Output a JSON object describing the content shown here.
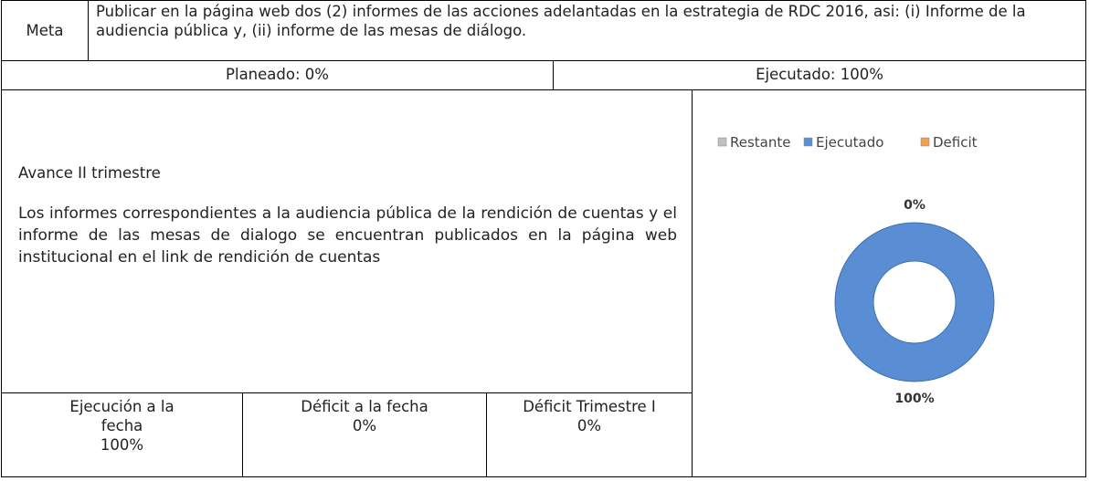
{
  "meta": {
    "label": "Meta",
    "text": "Publicar en la página web dos (2) informes de las acciones adelantadas en la estrategia de RDC 2016, asi: (i) Informe de la audiencia pública y, (ii) informe de las mesas de diálogo."
  },
  "planeado": "Planeado: 0%",
  "ejecutado": "Ejecutado: 100%",
  "avance": {
    "heading": "Avance II trimestre",
    "text": "Los informes correspondientes a la audiencia pública de la rendición de cuentas y el informe de las mesas de dialogo se encuentran publicados en la página web institucional en el link de rendición de cuentas"
  },
  "summary": [
    {
      "label": "Ejecución a la fecha",
      "value": "100%"
    },
    {
      "label": "Déficit a la fecha",
      "value": "0%"
    },
    {
      "label": "Déficit Trimestre I",
      "value": "0%"
    }
  ],
  "chart_data": {
    "type": "donut",
    "categories": [
      "Restante",
      "Ejecutado",
      "Deficit"
    ],
    "values": [
      0,
      100,
      0
    ],
    "value_labels": [
      "0%",
      "100%",
      null
    ],
    "colors": [
      "#bfbfbf",
      "#5a8ed4",
      "#f0a050"
    ],
    "legend": "top"
  }
}
